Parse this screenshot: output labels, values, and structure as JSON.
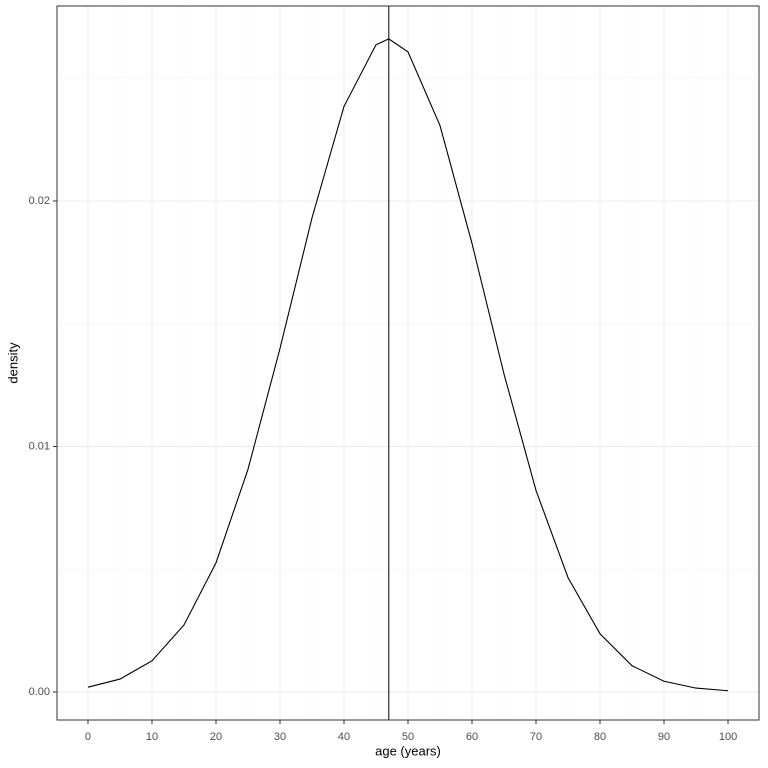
{
  "chart_data": {
    "type": "line",
    "x_label": "age (years)",
    "y_label": "density",
    "x": [
      0,
      5,
      10,
      15,
      20,
      25,
      30,
      35,
      40,
      45,
      47,
      50,
      55,
      60,
      65,
      70,
      75,
      80,
      85,
      90,
      95,
      100
    ],
    "series": [
      {
        "color": "#000000",
        "values": [
          0.000196,
          0.000527,
          0.00127,
          0.00273,
          0.00526,
          0.00907,
          0.01399,
          0.01931,
          0.02385,
          0.02636,
          0.0266,
          0.02607,
          0.02307,
          0.01827,
          0.01295,
          0.00821,
          0.00466,
          0.00237,
          0.00107,
          0.000437,
          0.000159,
          5.18e-05
        ]
      }
    ],
    "vline": 47,
    "xlim": [
      -4.84,
      104.84
    ],
    "ylim": [
      -0.00114,
      0.02794
    ],
    "xticks": [
      0,
      10,
      20,
      30,
      40,
      50,
      60,
      70,
      80,
      90,
      100
    ],
    "xminor": [
      5,
      15,
      25,
      35,
      45,
      55,
      65,
      75,
      85,
      95
    ],
    "yticks": [
      {
        "value": 0,
        "label": "0.00"
      },
      0.01,
      0.02
    ],
    "yminor": [
      0.005,
      0.015,
      0.025
    ],
    "grid": true
  }
}
